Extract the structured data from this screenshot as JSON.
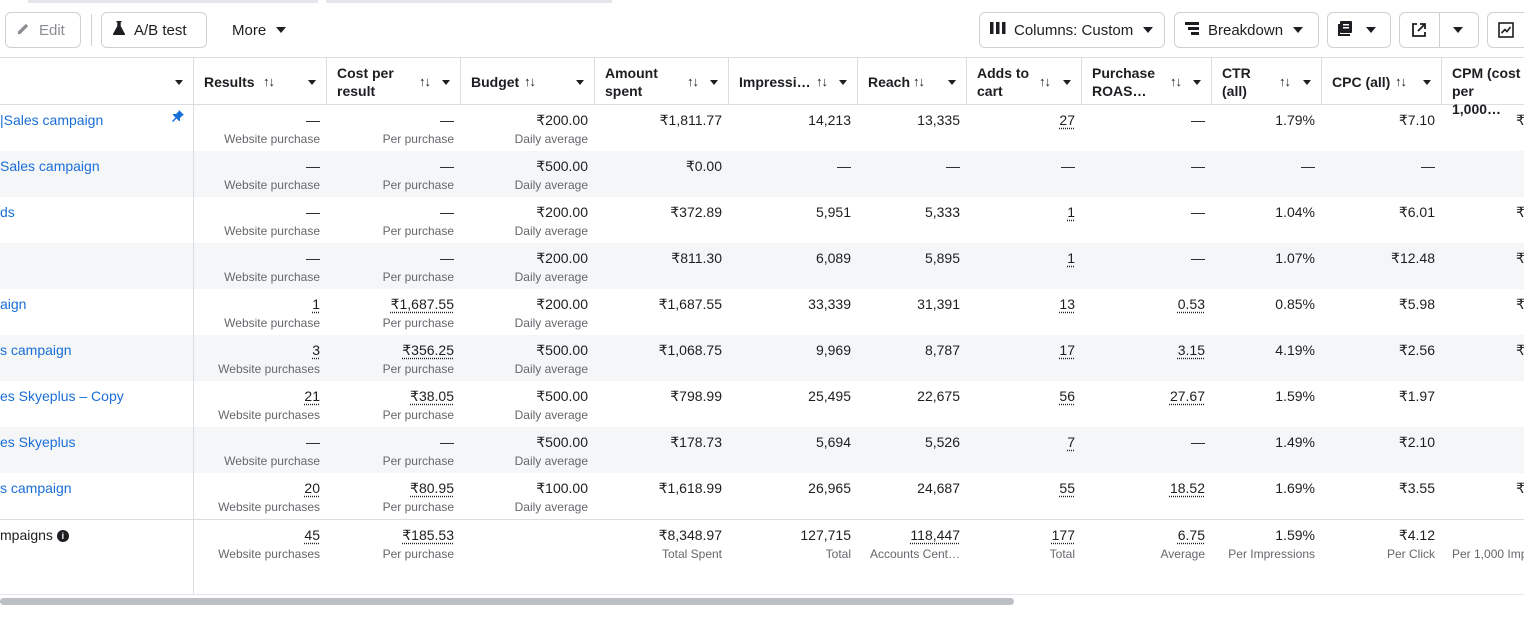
{
  "toolbar": {
    "edit_label": "Edit",
    "ab_test_label": "A/B test",
    "more_label": "More",
    "columns_label": "Columns: Custom",
    "breakdown_label": "Breakdown"
  },
  "columns": [
    {
      "key": "results",
      "label": "Results",
      "sortable": true
    },
    {
      "key": "cost_per_result",
      "label_line1": "Cost per",
      "label_line2": "result",
      "sortable": true
    },
    {
      "key": "budget",
      "label": "Budget",
      "sortable": true
    },
    {
      "key": "amount_spent",
      "label_line1": "Amount",
      "label_line2": "spent",
      "sortable": true
    },
    {
      "key": "impressions",
      "label": "Impressi…",
      "sortable": true
    },
    {
      "key": "reach",
      "label": "Reach",
      "sortable": true
    },
    {
      "key": "adds_to_cart",
      "label_line1": "Adds to",
      "label_line2": "cart",
      "sortable": true
    },
    {
      "key": "purchase_roas",
      "label_line1": "Purchase",
      "label_line2": "ROAS…",
      "sortable": true
    },
    {
      "key": "ctr",
      "label_line1": "CTR",
      "label_line2": "(all)",
      "sortable": true
    },
    {
      "key": "cpc",
      "label": "CPC (all)",
      "sortable": true
    },
    {
      "key": "cpm",
      "label_line1": "CPM (cost",
      "label_line2": "per 1,000…",
      "sortable": true
    }
  ],
  "rows": [
    {
      "name": "|Sales campaign",
      "pinned": true,
      "results": "—",
      "results_sub": "Website purchase",
      "cost": "—",
      "cost_sub": "Per purchase",
      "budget": "₹200.00",
      "budget_sub": "Daily average",
      "spent": "₹1,811.77",
      "impressions": "14,213",
      "reach": "13,335",
      "atc": "27",
      "roas": "—",
      "ctr": "1.79%",
      "cpc": "₹7.10",
      "cpm": "₹"
    },
    {
      "name": "Sales campaign",
      "results": "—",
      "results_sub": "Website purchase",
      "cost": "—",
      "cost_sub": "Per purchase",
      "budget": "₹500.00",
      "budget_sub": "Daily average",
      "spent": "₹0.00",
      "impressions": "—",
      "reach": "—",
      "atc": "—",
      "roas": "—",
      "ctr": "—",
      "cpc": "—",
      "cpm": ""
    },
    {
      "name": "ds",
      "results": "—",
      "results_sub": "Website purchase",
      "cost": "—",
      "cost_sub": "Per purchase",
      "budget": "₹200.00",
      "budget_sub": "Daily average",
      "spent": "₹372.89",
      "impressions": "5,951",
      "reach": "5,333",
      "atc": "1",
      "roas": "—",
      "ctr": "1.04%",
      "cpc": "₹6.01",
      "cpm": "₹"
    },
    {
      "name": "",
      "results": "—",
      "results_sub": "Website purchase",
      "cost": "—",
      "cost_sub": "Per purchase",
      "budget": "₹200.00",
      "budget_sub": "Daily average",
      "spent": "₹811.30",
      "impressions": "6,089",
      "reach": "5,895",
      "atc": "1",
      "roas": "—",
      "ctr": "1.07%",
      "cpc": "₹12.48",
      "cpm": "₹"
    },
    {
      "name": "aign",
      "results": "1",
      "results_sub": "Website purchase",
      "cost": "₹1,687.55",
      "cost_sub": "Per purchase",
      "budget": "₹200.00",
      "budget_sub": "Daily average",
      "spent": "₹1,687.55",
      "impressions": "33,339",
      "reach": "31,391",
      "atc": "13",
      "roas": "0.53",
      "ctr": "0.85%",
      "cpc": "₹5.98",
      "cpm": "₹"
    },
    {
      "name": "s campaign",
      "results": "3",
      "results_sub": "Website purchases",
      "cost": "₹356.25",
      "cost_sub": "Per purchase",
      "budget": "₹500.00",
      "budget_sub": "Daily average",
      "spent": "₹1,068.75",
      "impressions": "9,969",
      "reach": "8,787",
      "atc": "17",
      "roas": "3.15",
      "ctr": "4.19%",
      "cpc": "₹2.56",
      "cpm": "₹"
    },
    {
      "name": "es Skyeplus – Copy",
      "results": "21",
      "results_sub": "Website purchases",
      "cost": "₹38.05",
      "cost_sub": "Per purchase",
      "budget": "₹500.00",
      "budget_sub": "Daily average",
      "spent": "₹798.99",
      "impressions": "25,495",
      "reach": "22,675",
      "atc": "56",
      "roas": "27.67",
      "ctr": "1.59%",
      "cpc": "₹1.97",
      "cpm": ""
    },
    {
      "name": "es Skyeplus",
      "results": "—",
      "results_sub": "Website purchase",
      "cost": "—",
      "cost_sub": "Per purchase",
      "budget": "₹500.00",
      "budget_sub": "Daily average",
      "spent": "₹178.73",
      "impressions": "5,694",
      "reach": "5,526",
      "atc": "7",
      "roas": "—",
      "ctr": "1.49%",
      "cpc": "₹2.10",
      "cpm": ""
    },
    {
      "name": "s campaign",
      "results": "20",
      "results_sub": "Website purchases",
      "cost": "₹80.95",
      "cost_sub": "Per purchase",
      "budget": "₹100.00",
      "budget_sub": "Daily average",
      "spent": "₹1,618.99",
      "impressions": "26,965",
      "reach": "24,687",
      "atc": "55",
      "roas": "18.52",
      "ctr": "1.69%",
      "cpc": "₹3.55",
      "cpm": "₹"
    }
  ],
  "total": {
    "name": "mpaigns",
    "results": "45",
    "results_sub": "Website purchases",
    "cost": "₹185.53",
    "cost_sub": "Per purchase",
    "spent": "₹8,348.97",
    "spent_sub": "Total Spent",
    "impressions": "127,715",
    "impressions_sub": "Total",
    "reach": "118,447",
    "reach_sub": "Accounts Cent…",
    "atc": "177",
    "atc_sub": "Total",
    "roas": "6.75",
    "roas_sub": "Average",
    "ctr": "1.59%",
    "ctr_sub": "Per Impressions",
    "cpc": "₹4.12",
    "cpc_sub": "Per Click",
    "cpm_sub": "Per 1,000 Imp"
  }
}
